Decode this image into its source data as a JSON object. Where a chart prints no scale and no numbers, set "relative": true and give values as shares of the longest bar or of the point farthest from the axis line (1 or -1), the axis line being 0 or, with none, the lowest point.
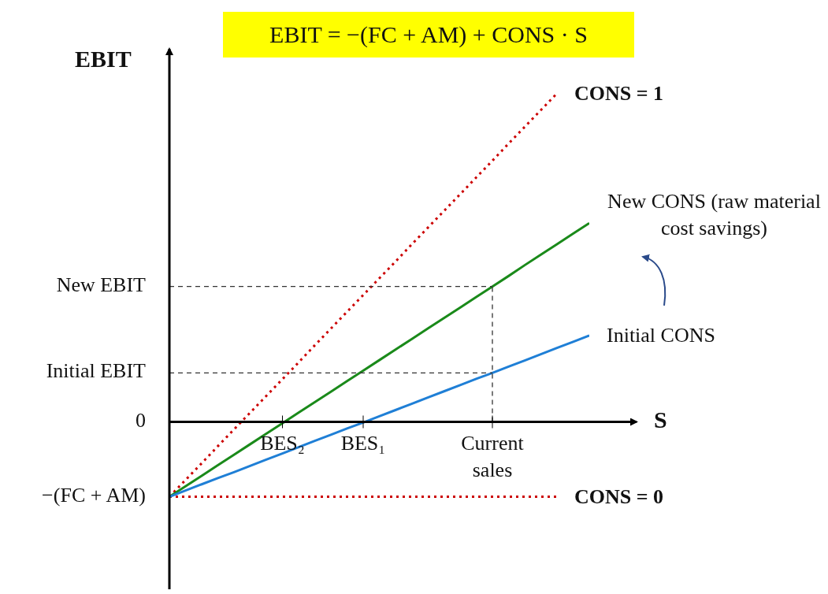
{
  "chart_data": {
    "type": "line",
    "title": "EBIT = −(FC + AM) + CONS · S",
    "ylabel": "EBIT",
    "xlabel": "S",
    "relative": true,
    "categories": [
      null,
      null,
      null,
      null,
      null,
      null,
      null,
      "BES₂",
      null,
      null,
      null,
      null,
      "BES₁",
      null,
      null,
      null,
      null,
      null,
      null,
      null,
      "Current sales",
      null,
      null,
      null,
      null,
      null,
      null
    ],
    "series": [
      {
        "name": "CONS = 1",
        "color": "#cc0000",
        "line_style": "dotted",
        "values": [
          -0.228,
          -0.177,
          -0.126,
          -0.074,
          -0.023,
          0.028,
          0.079,
          0.13,
          0.181,
          0.233,
          0.284,
          0.335,
          0.386,
          0.437,
          0.488,
          0.54,
          0.591,
          0.642,
          0.693,
          0.744,
          0.795,
          0.847,
          0.898,
          0.949,
          1.0,
          null,
          null
        ]
      },
      {
        "name": "CONS = 0",
        "color": "#cc0000",
        "line_style": "dotted",
        "values": [
          -0.228,
          -0.228,
          -0.228,
          -0.228,
          -0.228,
          -0.228,
          -0.228,
          -0.228,
          -0.228,
          -0.228,
          -0.228,
          -0.228,
          -0.228,
          -0.228,
          -0.228,
          -0.228,
          -0.228,
          -0.228,
          -0.228,
          -0.228,
          -0.228,
          -0.228,
          -0.228,
          -0.228,
          -0.228,
          null,
          null
        ]
      },
      {
        "name": "New CONS (raw material cost savings)",
        "color": "#1a8a1a",
        "line_style": "solid",
        "values": [
          -0.228,
          -0.196,
          -0.164,
          -0.132,
          -0.1,
          -0.068,
          -0.036,
          -0.004,
          0.028,
          0.06,
          0.092,
          0.124,
          0.156,
          0.188,
          0.22,
          0.252,
          0.284,
          0.316,
          0.348,
          0.38,
          0.412,
          0.444,
          0.477,
          0.509,
          0.541,
          0.573,
          0.605
        ]
      },
      {
        "name": "Initial CONS",
        "color": "#1f7fd6",
        "line_style": "solid",
        "values": [
          -0.228,
          -0.209,
          -0.19,
          -0.171,
          -0.153,
          -0.134,
          -0.115,
          -0.096,
          -0.077,
          -0.058,
          -0.039,
          -0.02,
          -0.002,
          0.017,
          0.036,
          0.055,
          0.074,
          0.093,
          0.112,
          0.131,
          0.149,
          0.168,
          0.187,
          0.206,
          0.225,
          0.244,
          0.263
        ]
      }
    ],
    "ref_lines": [
      {
        "axis": "y",
        "value": 0.412,
        "label": "New EBIT",
        "line_style": "dashed",
        "color": "#333333"
      },
      {
        "axis": "y",
        "value": 0.149,
        "label": "Initial EBIT",
        "line_style": "dashed",
        "color": "#333333"
      },
      {
        "axis": "x",
        "value": "Current sales",
        "line_style": "dashed",
        "color": "#333333"
      }
    ],
    "annotations": [
      "0",
      "−(FC + AM)"
    ]
  }
}
